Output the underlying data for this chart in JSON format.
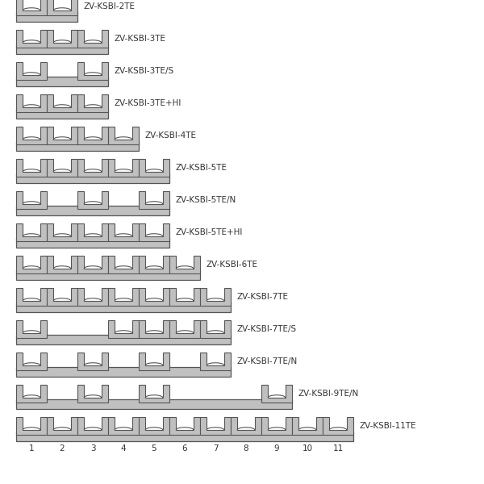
{
  "background_color": "#ffffff",
  "bar_fill": "#c0c0c0",
  "bar_edge": "#555555",
  "text_color": "#333333",
  "figsize": [
    6.0,
    6.0
  ],
  "dpi": 100,
  "rows": [
    {
      "label": "ZV-KSBI-2TE",
      "num_slots": 2,
      "active": [
        1,
        2
      ],
      "bar_slots": 2
    },
    {
      "label": "ZV-KSBI-3TE",
      "num_slots": 3,
      "active": [
        1,
        2,
        3
      ],
      "bar_slots": 3
    },
    {
      "label": "ZV-KSBI-3TE/S",
      "num_slots": 3,
      "active": [
        1,
        3
      ],
      "bar_slots": 3
    },
    {
      "label": "ZV-KSBI-3TE+HI",
      "num_slots": 3,
      "active": [
        1,
        2,
        3
      ],
      "bar_slots": 3
    },
    {
      "label": "ZV-KSBI-4TE",
      "num_slots": 4,
      "active": [
        1,
        2,
        3,
        4
      ],
      "bar_slots": 4
    },
    {
      "label": "ZV-KSBI-5TE",
      "num_slots": 5,
      "active": [
        1,
        2,
        3,
        4,
        5
      ],
      "bar_slots": 5
    },
    {
      "label": "ZV-KSBI-5TE/N",
      "num_slots": 5,
      "active": [
        1,
        3,
        5
      ],
      "bar_slots": 5
    },
    {
      "label": "ZV-KSBI-5TE+HI",
      "num_slots": 5,
      "active": [
        1,
        2,
        3,
        4,
        5
      ],
      "bar_slots": 5
    },
    {
      "label": "ZV-KSBI-6TE",
      "num_slots": 6,
      "active": [
        1,
        2,
        3,
        4,
        5,
        6
      ],
      "bar_slots": 6
    },
    {
      "label": "ZV-KSBI-7TE",
      "num_slots": 7,
      "active": [
        1,
        2,
        3,
        4,
        5,
        6,
        7
      ],
      "bar_slots": 7
    },
    {
      "label": "ZV-KSBI-7TE/S",
      "num_slots": 7,
      "active": [
        1,
        4,
        5,
        6,
        7
      ],
      "bar_slots": 7
    },
    {
      "label": "ZV-KSBI-7TE/N",
      "num_slots": 7,
      "active": [
        1,
        3,
        5,
        7
      ],
      "bar_slots": 7
    },
    {
      "label": "ZV-KSBI-9TE/N",
      "num_slots": 9,
      "active": [
        1,
        3,
        5,
        9
      ],
      "bar_slots": 9
    },
    {
      "label": "ZV-KSBI-11TE",
      "num_slots": 11,
      "active": [
        1,
        2,
        3,
        4,
        5,
        6,
        7,
        8,
        9,
        10,
        11
      ],
      "bar_slots": 11
    }
  ],
  "axis_numbers": [
    1,
    2,
    3,
    4,
    5,
    6,
    7,
    8,
    9,
    10,
    11
  ]
}
